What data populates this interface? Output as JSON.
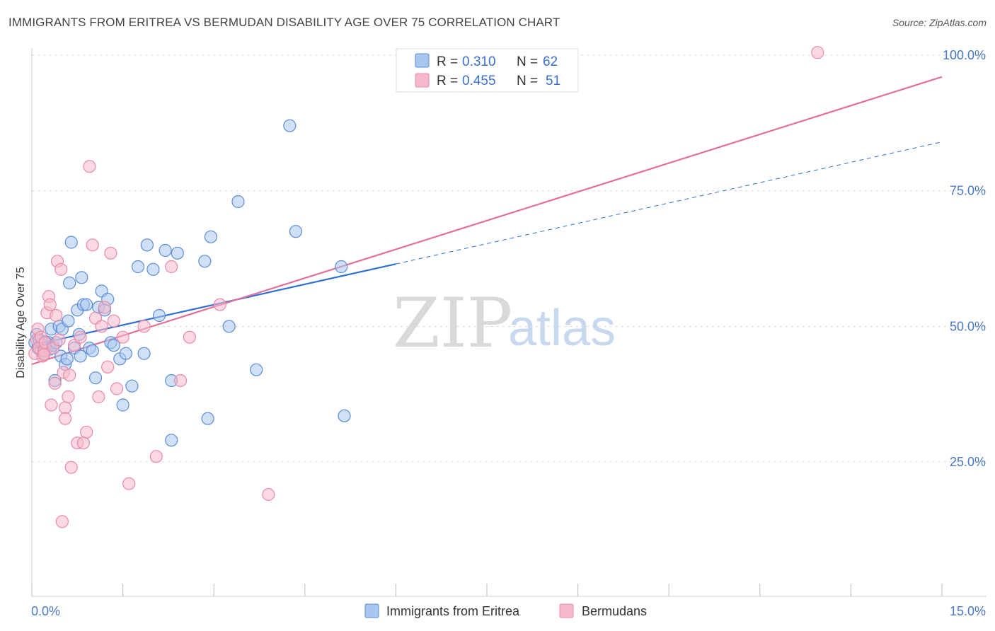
{
  "title": "IMMIGRANTS FROM ERITREA VS BERMUDAN DISABILITY AGE OVER 75 CORRELATION CHART",
  "source": "Source: ZipAtlas.com",
  "colors": {
    "blue_fill": "#a9c6ee",
    "blue_stroke": "#5b8bd6",
    "blue_line": "#2f6fcf",
    "pink_fill": "#f6b9cb",
    "pink_stroke": "#e889a7",
    "pink_line": "#e0709a",
    "axis_label": "#4a78c2",
    "grid": "#dddddd"
  },
  "legend": {
    "rows": [
      {
        "r_label": "R =",
        "r_value": "0.310",
        "n_label": "N =",
        "n_value": "62"
      },
      {
        "r_label": "R =",
        "r_value": "0.455",
        "n_label": "N =",
        "n_value": "51"
      }
    ]
  },
  "watermark": {
    "zip": "ZIP",
    "atlas": "atlas"
  },
  "chart_data": {
    "type": "scatter",
    "ylabel": "Disability Age Over 75",
    "xlim": [
      0,
      15
    ],
    "ylim": [
      0,
      103
    ],
    "x_tick_labels": [
      "0.0%",
      "15.0%"
    ],
    "y_ticks": [
      25,
      50,
      75,
      100
    ],
    "y_tick_labels": [
      "25.0%",
      "50.0%",
      "75.0%",
      "100.0%"
    ],
    "grid": true,
    "legend_position": "top-center",
    "series": [
      {
        "name": "Immigrants from Eritrea",
        "color": "#a9c6ee",
        "trend": {
          "x0": 0.0,
          "y0": 46.5,
          "x1": 6.0,
          "y1": 61.5,
          "x_ext": 15.0,
          "y_ext": 84.0
        },
        "points": [
          [
            0.05,
            47.0
          ],
          [
            0.08,
            48.5
          ],
          [
            0.1,
            46.0
          ],
          [
            0.12,
            47.5
          ],
          [
            0.15,
            45.5
          ],
          [
            0.18,
            46.8
          ],
          [
            0.2,
            45.0
          ],
          [
            0.22,
            47.2
          ],
          [
            0.25,
            46.0
          ],
          [
            0.28,
            47.0
          ],
          [
            0.3,
            45.8
          ],
          [
            0.32,
            49.5
          ],
          [
            0.35,
            46.5
          ],
          [
            0.38,
            40.0
          ],
          [
            0.4,
            47.0
          ],
          [
            0.45,
            50.0
          ],
          [
            0.48,
            44.5
          ],
          [
            0.5,
            49.5
          ],
          [
            0.55,
            43.0
          ],
          [
            0.58,
            44.0
          ],
          [
            0.6,
            51.0
          ],
          [
            0.62,
            58.0
          ],
          [
            0.65,
            65.5
          ],
          [
            0.7,
            46.0
          ],
          [
            0.75,
            53.0
          ],
          [
            0.78,
            48.5
          ],
          [
            0.8,
            44.5
          ],
          [
            0.82,
            59.0
          ],
          [
            0.85,
            54.0
          ],
          [
            0.9,
            54.0
          ],
          [
            0.95,
            46.0
          ],
          [
            1.0,
            45.5
          ],
          [
            1.05,
            40.5
          ],
          [
            1.1,
            53.5
          ],
          [
            1.15,
            56.5
          ],
          [
            1.2,
            53.0
          ],
          [
            1.25,
            55.0
          ],
          [
            1.3,
            47.0
          ],
          [
            1.35,
            46.5
          ],
          [
            1.45,
            44.0
          ],
          [
            1.5,
            35.5
          ],
          [
            1.55,
            45.0
          ],
          [
            1.65,
            39.0
          ],
          [
            1.75,
            61.0
          ],
          [
            1.85,
            45.0
          ],
          [
            1.9,
            65.0
          ],
          [
            2.0,
            60.5
          ],
          [
            2.1,
            52.0
          ],
          [
            2.2,
            64.0
          ],
          [
            2.3,
            29.0
          ],
          [
            2.3,
            40.0
          ],
          [
            2.4,
            63.5
          ],
          [
            2.85,
            62.0
          ],
          [
            2.9,
            33.0
          ],
          [
            2.95,
            66.5
          ],
          [
            3.25,
            50.0
          ],
          [
            3.4,
            73.0
          ],
          [
            3.7,
            42.0
          ],
          [
            4.25,
            87.0
          ],
          [
            4.35,
            67.5
          ],
          [
            5.1,
            61.0
          ],
          [
            5.15,
            33.5
          ]
        ]
      },
      {
        "name": "Bermudans",
        "color": "#f6b9cb",
        "trend": {
          "x0": 0.0,
          "y0": 43.0,
          "x1": 15.0,
          "y1": 96.0
        },
        "points": [
          [
            0.05,
            45.0
          ],
          [
            0.08,
            47.5
          ],
          [
            0.1,
            49.5
          ],
          [
            0.12,
            46.0
          ],
          [
            0.15,
            48.0
          ],
          [
            0.18,
            44.5
          ],
          [
            0.2,
            45.5
          ],
          [
            0.22,
            47.0
          ],
          [
            0.25,
            52.5
          ],
          [
            0.28,
            55.5
          ],
          [
            0.3,
            54.0
          ],
          [
            0.32,
            35.5
          ],
          [
            0.35,
            46.0
          ],
          [
            0.38,
            39.5
          ],
          [
            0.4,
            52.0
          ],
          [
            0.42,
            62.0
          ],
          [
            0.45,
            47.5
          ],
          [
            0.48,
            60.5
          ],
          [
            0.5,
            14.0
          ],
          [
            0.52,
            41.5
          ],
          [
            0.55,
            35.0
          ],
          [
            0.55,
            33.0
          ],
          [
            0.6,
            37.0
          ],
          [
            0.62,
            41.0
          ],
          [
            0.65,
            24.0
          ],
          [
            0.7,
            46.5
          ],
          [
            0.75,
            28.5
          ],
          [
            0.8,
            48.0
          ],
          [
            0.85,
            28.5
          ],
          [
            0.9,
            30.5
          ],
          [
            0.95,
            79.5
          ],
          [
            1.0,
            65.0
          ],
          [
            1.05,
            51.5
          ],
          [
            1.1,
            37.0
          ],
          [
            1.15,
            50.0
          ],
          [
            1.2,
            53.5
          ],
          [
            1.25,
            42.5
          ],
          [
            1.3,
            63.5
          ],
          [
            1.35,
            51.0
          ],
          [
            1.4,
            38.5
          ],
          [
            1.5,
            48.0
          ],
          [
            1.6,
            21.0
          ],
          [
            1.85,
            50.0
          ],
          [
            2.05,
            26.0
          ],
          [
            2.3,
            61.0
          ],
          [
            2.45,
            40.0
          ],
          [
            2.6,
            48.0
          ],
          [
            3.1,
            54.0
          ],
          [
            3.9,
            19.0
          ],
          [
            12.95,
            100.5
          ],
          [
            0.2,
            44.8
          ]
        ]
      }
    ]
  }
}
